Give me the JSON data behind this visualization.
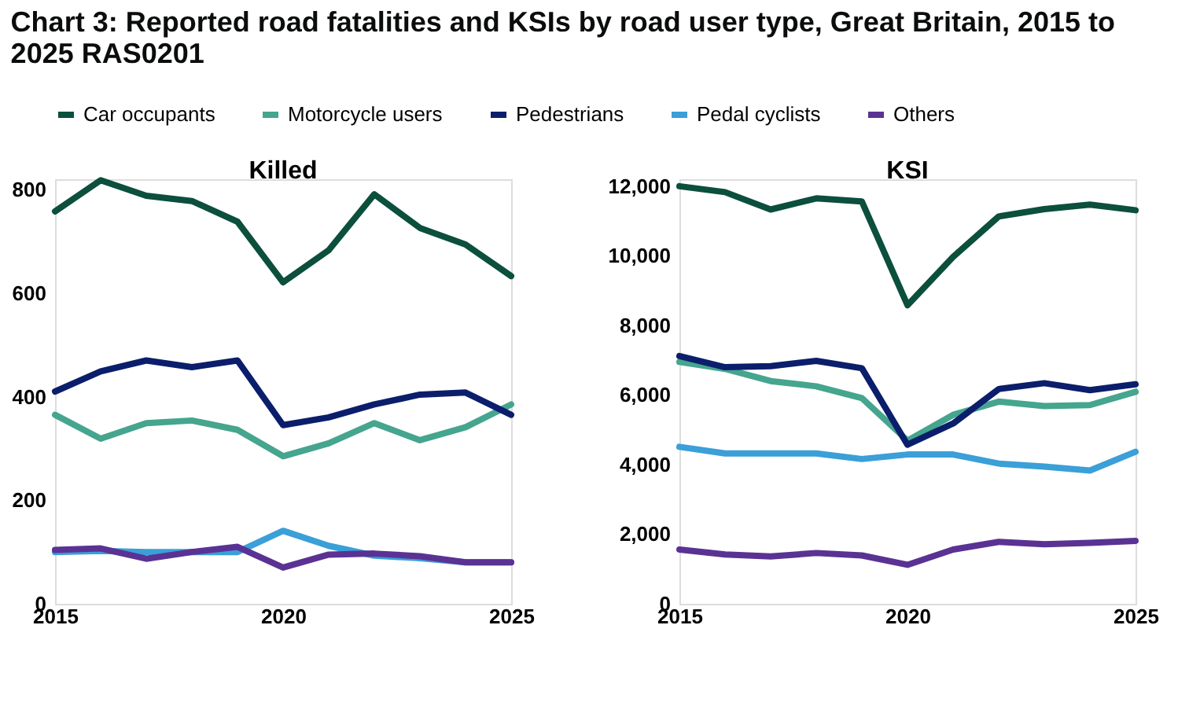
{
  "chart_data": [
    {
      "type": "line",
      "title": "Killed",
      "annotations": [
        "Chart 3: Reported road fatalities and KSIs by road user type, Great Britain, 2015 to 2025 RAS0201"
      ],
      "x": [
        2015,
        2016,
        2017,
        2018,
        2019,
        2020,
        2021,
        2022,
        2023,
        2024,
        2025
      ],
      "xlim": [
        2015,
        2025
      ],
      "xticks": [
        2015,
        2020,
        2025
      ],
      "ylim": [
        0,
        820
      ],
      "yticks": [
        0,
        200,
        400,
        600,
        800
      ],
      "grid": false,
      "legend": "top",
      "line_style": "solid",
      "series": [
        {
          "name": "Car occupants",
          "color": "#0b4f3c",
          "values": [
            758,
            818,
            788,
            778,
            738,
            621,
            683,
            791,
            726,
            694,
            633
          ]
        },
        {
          "name": "Motorcycle users",
          "color": "#45a58e",
          "values": [
            365,
            319,
            349,
            354,
            336,
            285,
            310,
            349,
            316,
            341,
            385
          ]
        },
        {
          "name": "Pedestrians",
          "color": "#0b1e6b",
          "values": [
            410,
            449,
            470,
            457,
            470,
            345,
            360,
            385,
            404,
            408,
            365
          ]
        },
        {
          "name": "Pedal cyclists",
          "color": "#3b9fd8",
          "values": [
            100,
            102,
            100,
            100,
            100,
            141,
            112,
            93,
            88,
            80,
            80
          ]
        },
        {
          "name": "Others",
          "color": "#5a3294",
          "values": [
            104,
            107,
            87,
            100,
            110,
            70,
            95,
            97,
            92,
            80,
            80
          ]
        }
      ]
    },
    {
      "type": "line",
      "title": "KSI",
      "x": [
        2015,
        2016,
        2017,
        2018,
        2019,
        2020,
        2021,
        2022,
        2023,
        2024,
        2025
      ],
      "xlim": [
        2015,
        2025
      ],
      "xticks": [
        2015,
        2020,
        2025
      ],
      "ylim": [
        0,
        12200
      ],
      "yticks": [
        0,
        {
          "value": 2000,
          "label": "2,000"
        },
        {
          "value": 4000,
          "label": "4,000"
        },
        {
          "value": 6000,
          "label": "6,000"
        },
        {
          "value": 8000,
          "label": "8,000"
        },
        {
          "value": 10000,
          "label": "10,000"
        },
        {
          "value": 12000,
          "label": "12,000"
        }
      ],
      "grid": false,
      "legend": "top",
      "line_style": "solid",
      "series": [
        {
          "name": "Car occupants",
          "color": "#0b4f3c",
          "values": [
            12000,
            11830,
            11330,
            11650,
            11560,
            8580,
            9970,
            11130,
            11340,
            11470,
            11310
          ]
        },
        {
          "name": "Motorcycle users",
          "color": "#45a58e",
          "values": [
            6950,
            6750,
            6400,
            6250,
            5910,
            4690,
            5430,
            5810,
            5680,
            5710,
            6090
          ]
        },
        {
          "name": "Pedestrians",
          "color": "#0b1e6b",
          "values": [
            7120,
            6800,
            6830,
            6980,
            6770,
            4570,
            5180,
            6170,
            6340,
            6140,
            6310
          ]
        },
        {
          "name": "Pedal cyclists",
          "color": "#3b9fd8",
          "values": [
            4510,
            4320,
            4320,
            4320,
            4160,
            4290,
            4290,
            4030,
            3940,
            3830,
            4370
          ]
        },
        {
          "name": "Others",
          "color": "#5a3294",
          "values": [
            1560,
            1420,
            1360,
            1460,
            1390,
            1120,
            1560,
            1780,
            1710,
            1750,
            1810
          ]
        }
      ]
    }
  ]
}
